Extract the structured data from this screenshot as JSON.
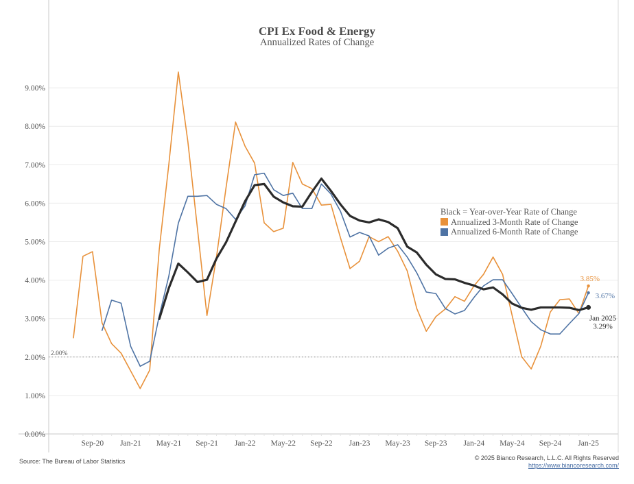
{
  "chart_data": {
    "type": "line",
    "title": "CPI Ex Food & Energy",
    "subtitle": "Annualized Rates of Change",
    "xlabel": "",
    "ylabel": "",
    "ylim": [
      0,
      9.4
    ],
    "yticks": [
      "0.00%",
      "1.00%",
      "2.00%",
      "3.00%",
      "4.00%",
      "5.00%",
      "6.00%",
      "7.00%",
      "8.00%",
      "9.00%"
    ],
    "ytick_values": [
      0,
      1,
      2,
      3,
      4,
      5,
      6,
      7,
      8,
      9
    ],
    "xticks": [
      "Sep-20",
      "Jan-21",
      "May-21",
      "Sep-21",
      "Jan-22",
      "May-22",
      "Sep-22",
      "Jan-23",
      "May-23",
      "Sep-23",
      "Jan-24",
      "May-24",
      "Sep-24",
      "Jan-25"
    ],
    "grid": true,
    "x": [
      "Jul-20",
      "Aug-20",
      "Sep-20",
      "Oct-20",
      "Nov-20",
      "Dec-20",
      "Jan-21",
      "Feb-21",
      "Mar-21",
      "Apr-21",
      "May-21",
      "Jun-21",
      "Jul-21",
      "Aug-21",
      "Sep-21",
      "Oct-21",
      "Nov-21",
      "Dec-21",
      "Jan-22",
      "Feb-22",
      "Mar-22",
      "Apr-22",
      "May-22",
      "Jun-22",
      "Jul-22",
      "Aug-22",
      "Sep-22",
      "Oct-22",
      "Nov-22",
      "Dec-22",
      "Jan-23",
      "Feb-23",
      "Mar-23",
      "Apr-23",
      "May-23",
      "Jun-23",
      "Jul-23",
      "Aug-23",
      "Sep-23",
      "Oct-23",
      "Nov-23",
      "Dec-23",
      "Jan-24",
      "Feb-24",
      "Mar-24",
      "Apr-24",
      "May-24",
      "Jun-24",
      "Jul-24",
      "Aug-24",
      "Sep-24",
      "Oct-24",
      "Nov-24",
      "Dec-24",
      "Jan-25"
    ],
    "series": [
      {
        "name": "Annualized 3-Month Rate of Change",
        "color": "#e8913a",
        "values": [
          2.5,
          4.62,
          4.74,
          2.89,
          2.35,
          2.1,
          1.64,
          1.18,
          1.66,
          4.8,
          7.0,
          9.41,
          7.6,
          5.35,
          3.08,
          4.6,
          6.4,
          8.11,
          7.48,
          7.04,
          5.49,
          5.26,
          5.35,
          7.06,
          6.5,
          6.38,
          5.95,
          5.97,
          5.1,
          4.3,
          4.49,
          5.13,
          5.0,
          5.13,
          4.75,
          4.24,
          3.26,
          2.67,
          3.05,
          3.25,
          3.57,
          3.45,
          3.85,
          4.15,
          4.6,
          4.15,
          3.08,
          2.01,
          1.69,
          2.28,
          3.17,
          3.49,
          3.51,
          3.13,
          3.85
        ]
      },
      {
        "name": "Annualized 6-Month Rate of Change",
        "color": "#4e73a4",
        "values": [
          null,
          null,
          null,
          2.69,
          3.48,
          3.4,
          2.28,
          1.76,
          1.89,
          3.07,
          4.1,
          5.48,
          6.18,
          6.18,
          6.2,
          5.97,
          5.86,
          5.58,
          5.93,
          6.74,
          6.78,
          6.35,
          6.2,
          6.26,
          5.86,
          5.86,
          6.5,
          6.24,
          5.79,
          5.12,
          5.24,
          5.15,
          4.65,
          4.83,
          4.92,
          4.6,
          4.19,
          3.69,
          3.65,
          3.26,
          3.12,
          3.21,
          3.55,
          3.85,
          4.01,
          4.01,
          3.65,
          3.28,
          2.92,
          2.71,
          2.6,
          2.6,
          2.87,
          3.13,
          3.67
        ]
      },
      {
        "name": "Year-over-Year Rate of Change",
        "color": "#2b2b2b",
        "values": [
          null,
          null,
          null,
          null,
          null,
          null,
          null,
          null,
          null,
          2.99,
          3.79,
          4.43,
          4.2,
          3.95,
          4.01,
          4.56,
          4.98,
          5.52,
          6.05,
          6.47,
          6.5,
          6.17,
          6.02,
          5.92,
          5.91,
          6.29,
          6.64,
          6.32,
          5.97,
          5.67,
          5.55,
          5.5,
          5.58,
          5.51,
          5.35,
          4.87,
          4.72,
          4.4,
          4.15,
          4.03,
          4.02,
          3.93,
          3.86,
          3.76,
          3.81,
          3.63,
          3.39,
          3.28,
          3.23,
          3.29,
          3.29,
          3.29,
          3.28,
          3.22,
          3.29
        ]
      }
    ],
    "reference_line": {
      "value": 2.0,
      "label": "2.00%",
      "style": "dotted"
    },
    "annotations": {
      "three_month_end": "3.85%",
      "six_month_end": "3.67%",
      "yoy_end_date": "Jan 2025",
      "yoy_end_value": "3.29%"
    },
    "legend": {
      "placement": "right",
      "header": "Black = Year-over-Year Rate of Change",
      "items": [
        {
          "label": "Annualized 3-Month Rate of Change",
          "color": "#e8913a"
        },
        {
          "label": "Annualized 6-Month Rate of Change",
          "color": "#4e73a4"
        }
      ]
    }
  },
  "footer": {
    "source": "Source: The Bureau of Labor Statistics",
    "copyright": "© 2025 Bianco Research, L.L.C. All Rights Reserved",
    "link": "https://www.biancoresearch.com/"
  }
}
